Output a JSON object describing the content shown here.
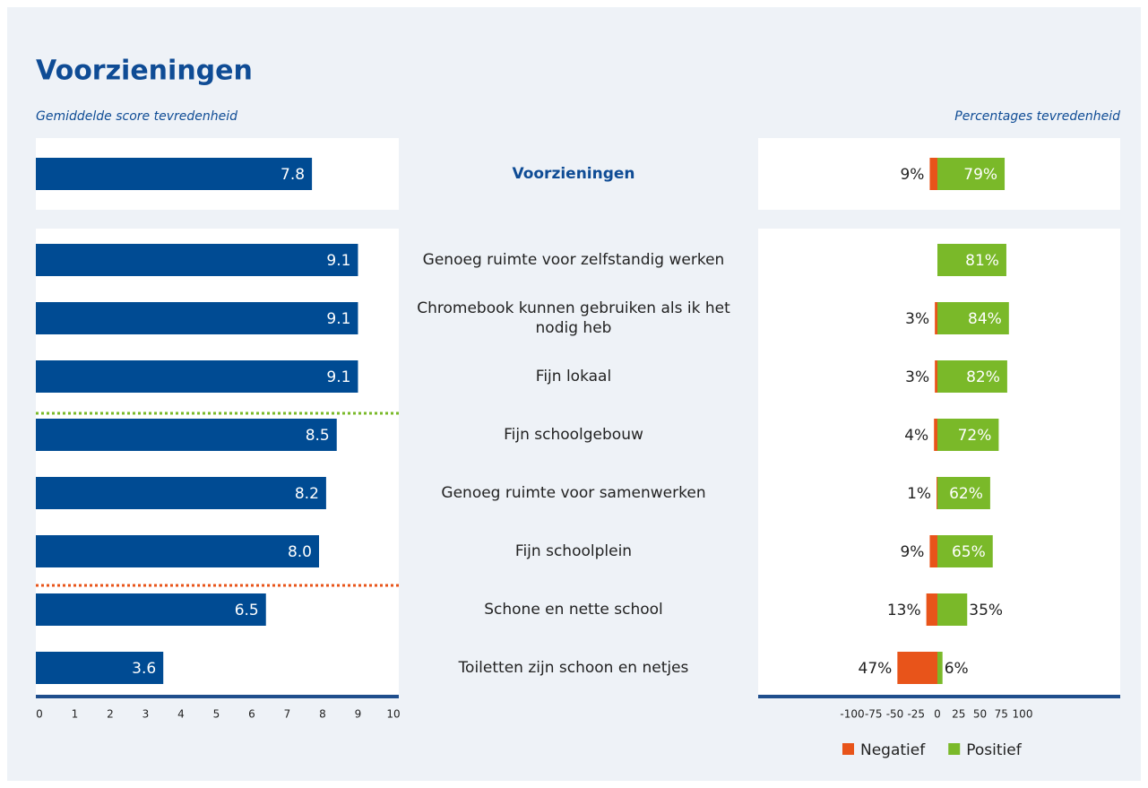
{
  "title": "Voorzieningen",
  "chart_data": [
    {
      "type": "bar",
      "subtitle": "Gemiddelde score tevredenheid",
      "categories": [
        "Voorzieningen",
        "Genoeg ruimte voor zelfstandig werken",
        "Chromebook kunnen gebruiken als ik het nodig heb",
        "Fijn lokaal",
        "Fijn schoolgebouw",
        "Genoeg ruimte voor samenwerken",
        "Fijn schoolplein",
        "Schone en nette school",
        "Toiletten zijn schoon en netjes"
      ],
      "values": [
        7.8,
        9.1,
        9.1,
        9.1,
        8.5,
        8.2,
        8.0,
        6.5,
        3.6
      ],
      "value_labels": [
        "7.8",
        "9.1",
        "9.1",
        "9.1",
        "8.5",
        "8.2",
        "8.0",
        "6.5",
        "3.6"
      ],
      "color": "#004b93",
      "xlim": [
        0,
        10
      ],
      "xticks": [
        0,
        1,
        2,
        3,
        4,
        5,
        6,
        7,
        8,
        9,
        10
      ]
    },
    {
      "type": "diverging_bar",
      "subtitle": "Percentages tevredenheid",
      "series": [
        {
          "name": "Negatief",
          "color": "#e8541a",
          "values": [
            9,
            null,
            3,
            3,
            4,
            1,
            9,
            13,
            47
          ],
          "value_labels": [
            "9%",
            null,
            "3%",
            "3%",
            "4%",
            "1%",
            "9%",
            "13%",
            "47%"
          ]
        },
        {
          "name": "Positief",
          "color": "#7ab929",
          "values": [
            79,
            81,
            84,
            82,
            72,
            62,
            65,
            35,
            6
          ],
          "value_labels": [
            "79%",
            "81%",
            "84%",
            "82%",
            "72%",
            "62%",
            "65%",
            "35%",
            "6%"
          ]
        }
      ],
      "xlim": [
        -100,
        100
      ],
      "xticks": [
        -100,
        -75,
        -50,
        -25,
        0,
        25,
        50,
        75,
        100
      ],
      "legend": "bottom"
    }
  ]
}
